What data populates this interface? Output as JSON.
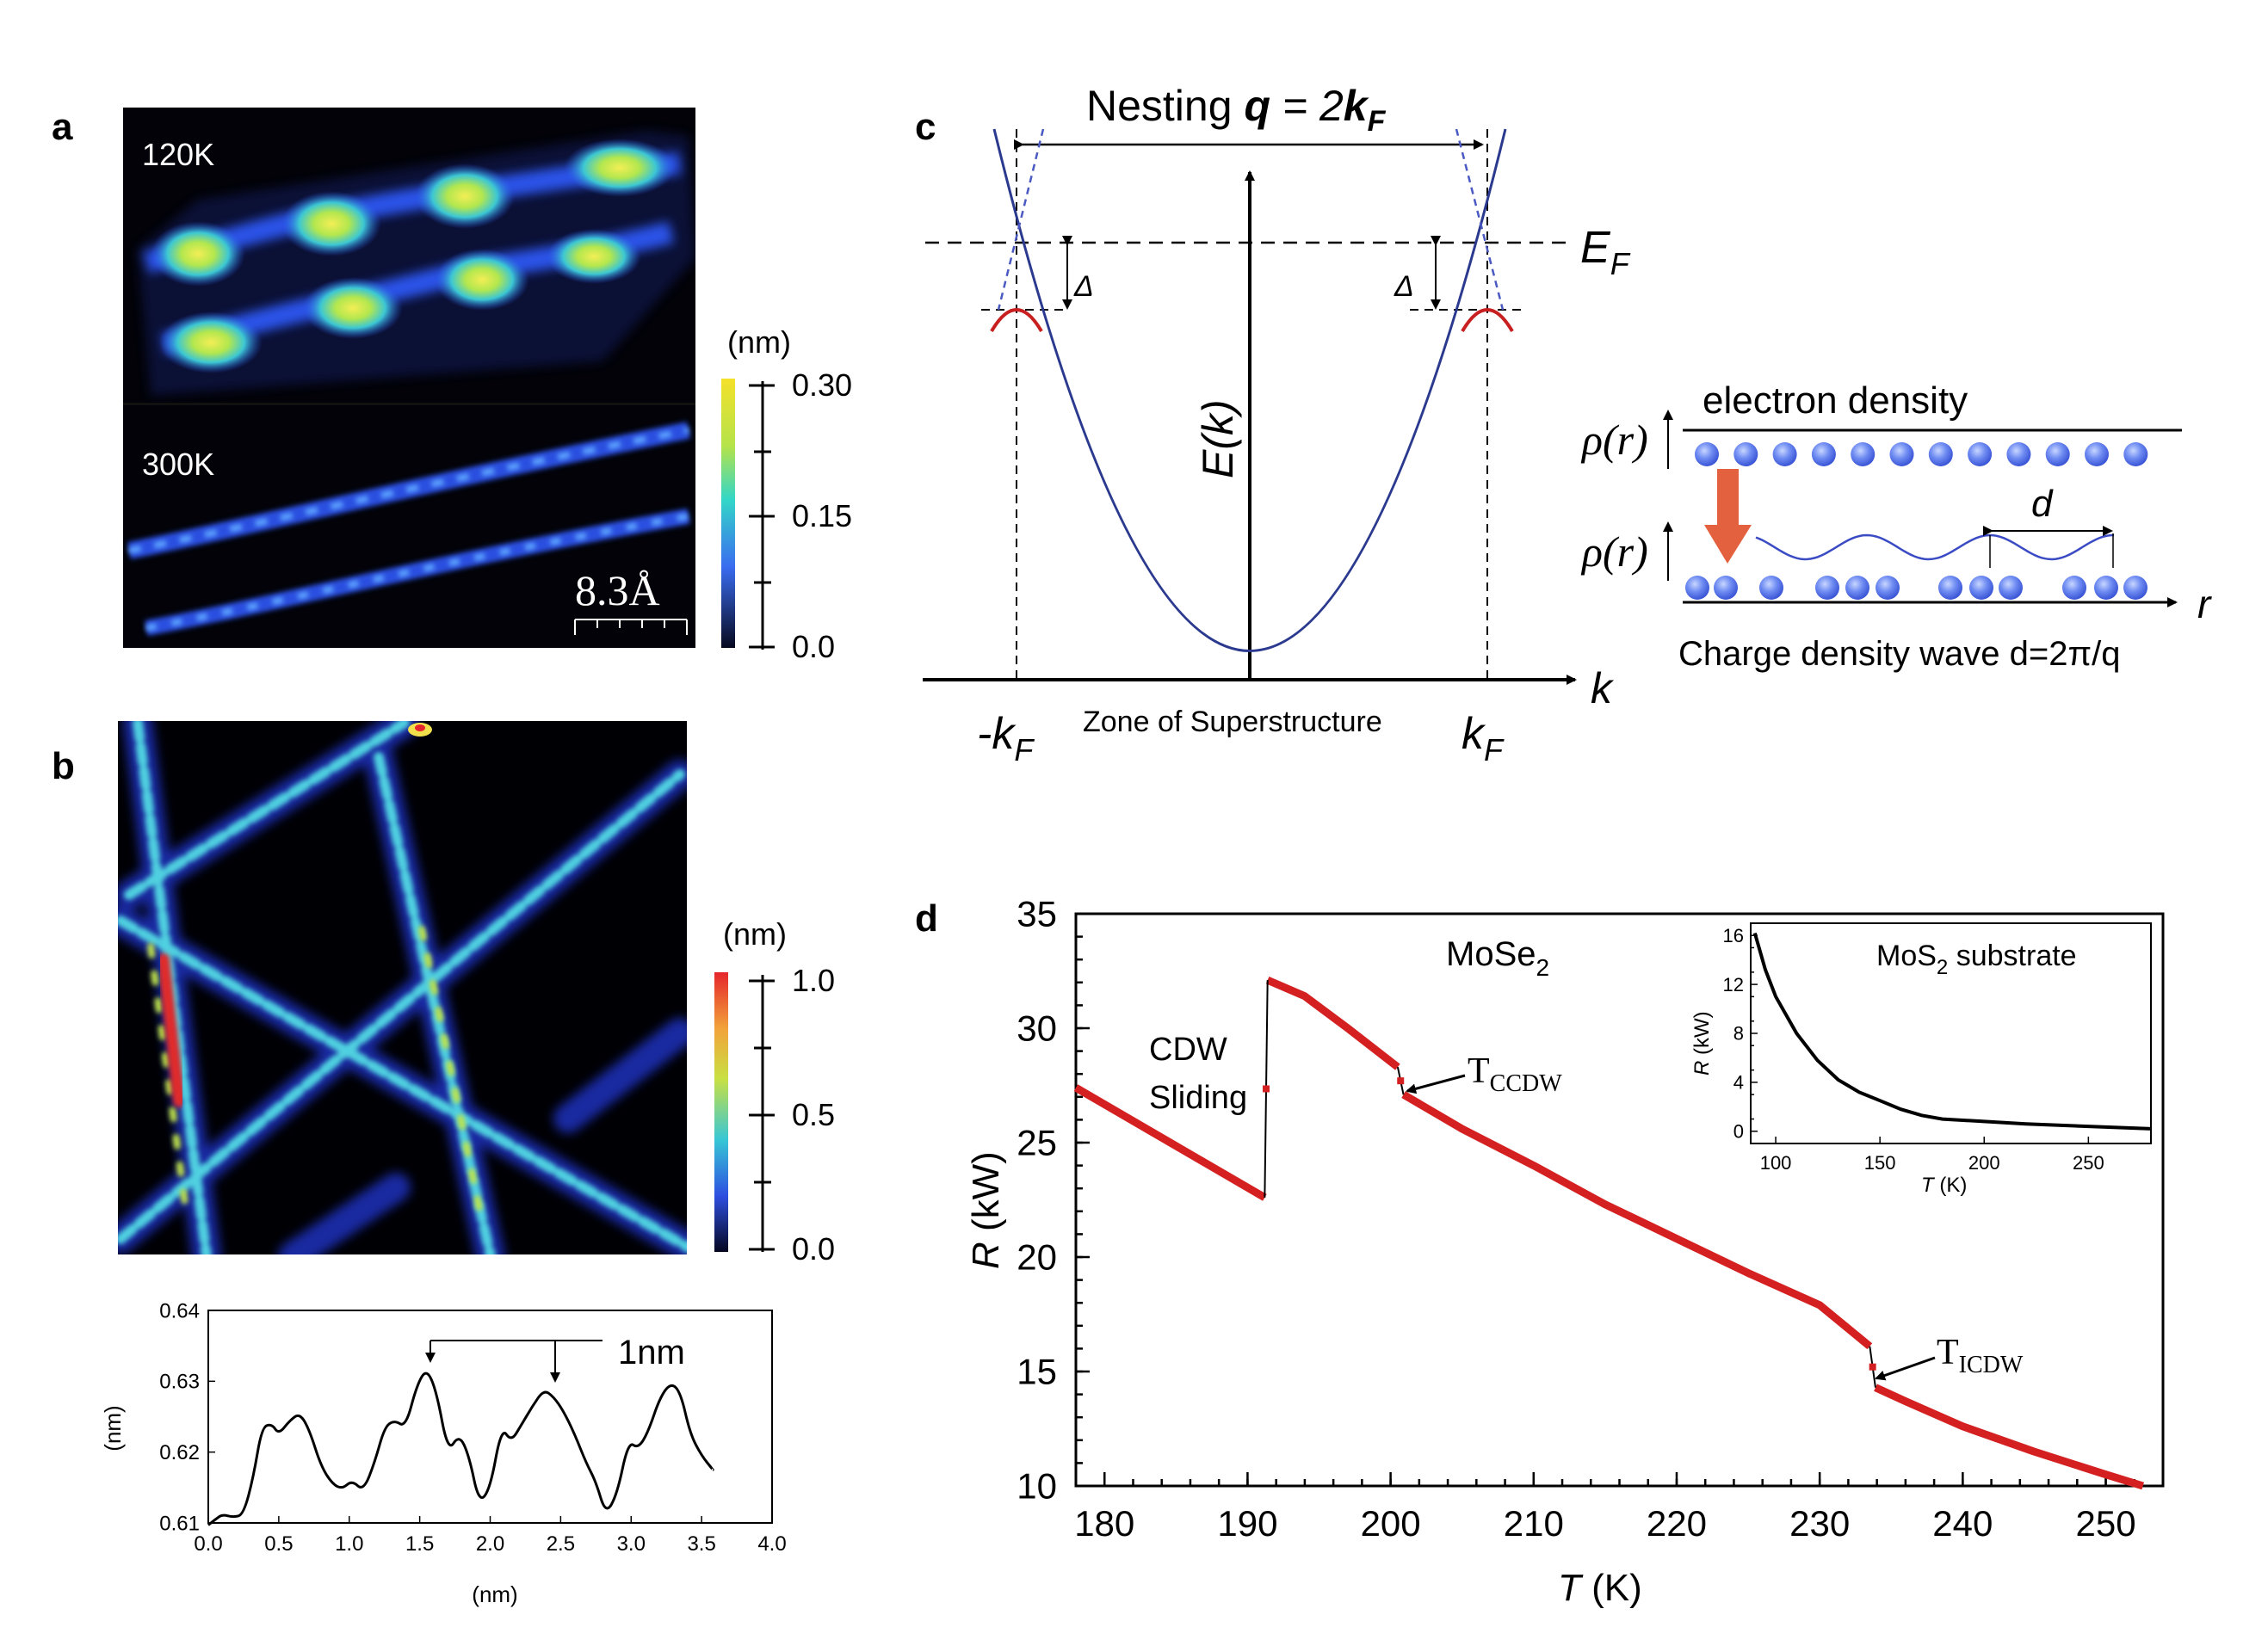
{
  "panel_labels": {
    "a": "a",
    "b": "b",
    "c": "c",
    "d": "d"
  },
  "panel_a": {
    "label_120k": "120K",
    "label_300k": "300K",
    "scale_bar": "8.3Å",
    "colorbar": {
      "unit": "(nm)",
      "ticks": [
        "0.30",
        "0.15",
        "0.0"
      ]
    }
  },
  "panel_b": {
    "colorbar": {
      "unit": "(nm)",
      "ticks": [
        "1.0",
        "0.5",
        "0.0"
      ]
    },
    "profile_annotation": "1nm"
  },
  "panel_c": {
    "title_prefix": "Nesting ",
    "title_q": "q",
    "title_eq": " = 2",
    "title_k": "k",
    "title_sub": "F",
    "ef_label": "E",
    "ef_sub": "F",
    "ek_label": "E(k)",
    "delta": "Δ",
    "k_axis": "k",
    "neg_kf": "-k",
    "kf": "k",
    "kf_sub": "F",
    "zone_label": "Zone of Superstructure",
    "rho_label": "ρ(r)",
    "electron_density": "electron density",
    "d_label": "d",
    "r_axis": "r",
    "cdw_caption": "Charge density wave d=2π/q"
  },
  "panel_d": {
    "sample_label": "MoSe",
    "sample_sub": "2",
    "cdw_line1": "CDW",
    "cdw_line2": "Sliding",
    "t_ccdw": "T",
    "t_ccdw_sub": "CCDW",
    "t_icdw": "T",
    "t_icdw_sub": "ICDW",
    "inset_title": "MoS",
    "inset_title_sub": "2",
    "inset_title_rest": " substrate"
  },
  "chart_data": [
    {
      "id": "panel-d-main",
      "type": "line",
      "title": "MoSe2",
      "xlabel": "T (K)",
      "ylabel": "R (kW)",
      "xlim": [
        178,
        254
      ],
      "ylim": [
        10,
        35
      ],
      "xticks": [
        180,
        190,
        200,
        210,
        220,
        230,
        240,
        250
      ],
      "yticks": [
        10,
        15,
        20,
        25,
        30,
        35
      ],
      "series": [
        {
          "name": "R(T) segment 1",
          "x": [
            178,
            191.2
          ],
          "y": [
            27.4,
            22.6
          ]
        },
        {
          "name": "R(T) segment 2",
          "x": [
            191.4,
            194,
            197,
            200.5
          ],
          "y": [
            32.1,
            31.4,
            30.0,
            28.3
          ]
        },
        {
          "name": "R(T) segment 3",
          "x": [
            200.9,
            205,
            210,
            215,
            220,
            225,
            230,
            233.5
          ],
          "y": [
            27.1,
            25.6,
            24.0,
            22.3,
            20.8,
            19.3,
            17.9,
            16.1
          ]
        },
        {
          "name": "R(T) segment 4",
          "x": [
            233.9,
            236,
            240,
            245,
            250,
            252.6
          ],
          "y": [
            14.3,
            13.7,
            12.6,
            11.5,
            10.5,
            10.0
          ]
        }
      ]
    },
    {
      "id": "panel-d-inset",
      "type": "line",
      "title": "MoS2 substrate",
      "xlabel": "T (K)",
      "ylabel": "R (kW)",
      "xlim": [
        88,
        280
      ],
      "ylim": [
        -1,
        17
      ],
      "xticks": [
        100,
        150,
        200,
        250
      ],
      "yticks": [
        0,
        4,
        8,
        12,
        16
      ],
      "series": [
        {
          "name": "MoS2",
          "x": [
            90,
            95,
            100,
            110,
            120,
            130,
            140,
            150,
            160,
            170,
            180,
            200,
            220,
            250,
            280
          ],
          "y": [
            16.2,
            13.2,
            11.0,
            8.0,
            5.8,
            4.2,
            3.2,
            2.5,
            1.8,
            1.3,
            1.0,
            0.8,
            0.6,
            0.4,
            0.2
          ]
        }
      ]
    },
    {
      "id": "panel-b-profile",
      "type": "line",
      "title": "",
      "xlabel": "(nm)",
      "ylabel": "(nm)",
      "xlim": [
        0,
        4.0
      ],
      "ylim": [
        0.61,
        0.64
      ],
      "xticks": [
        0.0,
        0.5,
        1.0,
        1.5,
        2.0,
        2.5,
        3.0,
        3.5,
        4.0
      ],
      "yticks": [
        0.61,
        0.62,
        0.63,
        0.64
      ],
      "series": [
        {
          "name": "profile",
          "x": [
            0.0,
            0.05,
            0.1,
            0.18,
            0.25,
            0.32,
            0.38,
            0.45,
            0.5,
            0.58,
            0.65,
            0.72,
            0.8,
            0.88,
            0.95,
            1.02,
            1.1,
            1.18,
            1.25,
            1.32,
            1.4,
            1.48,
            1.55,
            1.62,
            1.7,
            1.78,
            1.85,
            1.92,
            2.0,
            2.08,
            2.15,
            2.22,
            2.3,
            2.38,
            2.45,
            2.52,
            2.6,
            2.68,
            2.75,
            2.82,
            2.9,
            2.98,
            3.05,
            3.12,
            3.2,
            3.28,
            3.35,
            3.42,
            3.5,
            3.58
          ],
          "y": [
            0.6097,
            0.6105,
            0.6112,
            0.6108,
            0.6112,
            0.6165,
            0.6235,
            0.624,
            0.6225,
            0.6245,
            0.6255,
            0.623,
            0.618,
            0.6155,
            0.6148,
            0.616,
            0.6145,
            0.6185,
            0.6235,
            0.6245,
            0.6235,
            0.6295,
            0.6318,
            0.6285,
            0.62,
            0.6225,
            0.6195,
            0.6128,
            0.6148,
            0.6235,
            0.6215,
            0.6238,
            0.6265,
            0.6288,
            0.6278,
            0.6258,
            0.6225,
            0.6185,
            0.6158,
            0.6112,
            0.614,
            0.6215,
            0.6205,
            0.6228,
            0.6275,
            0.6298,
            0.6285,
            0.6225,
            0.6195,
            0.6175
          ]
        }
      ]
    }
  ]
}
